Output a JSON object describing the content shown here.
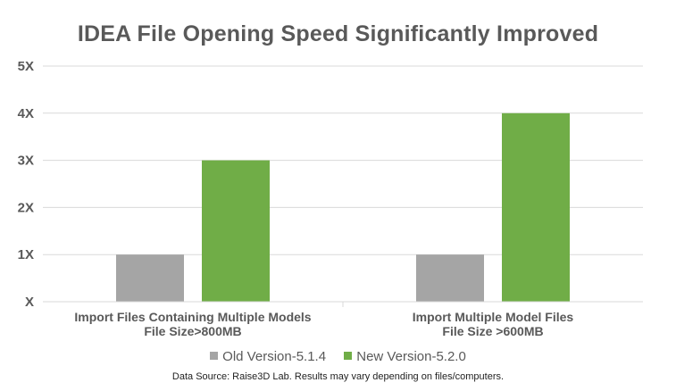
{
  "chart_data": {
    "type": "bar",
    "title": "IDEA File Opening Speed Significantly Improved",
    "categories": [
      [
        "Import Files Containing Multiple Models",
        "File Size>800MB"
      ],
      [
        "Import Multiple Model Files",
        "File Size >600MB"
      ]
    ],
    "series": [
      {
        "name": "Old Version-5.1.4",
        "color": "#A5A5A5",
        "values": [
          1,
          1
        ]
      },
      {
        "name": "New Version-5.2.0",
        "color": "#70AD47",
        "values": [
          3,
          4
        ]
      }
    ],
    "y_ticks": [
      {
        "value": 0,
        "label": "X"
      },
      {
        "value": 1,
        "label": "1X"
      },
      {
        "value": 2,
        "label": "2X"
      },
      {
        "value": 3,
        "label": "3X"
      },
      {
        "value": 4,
        "label": "4X"
      },
      {
        "value": 5,
        "label": "5X"
      }
    ],
    "ylim": [
      0,
      5
    ],
    "grid": true,
    "legend_position": "bottom"
  },
  "footnote": "Data Source: Raise3D Lab. Results may vary depending on files/computers."
}
